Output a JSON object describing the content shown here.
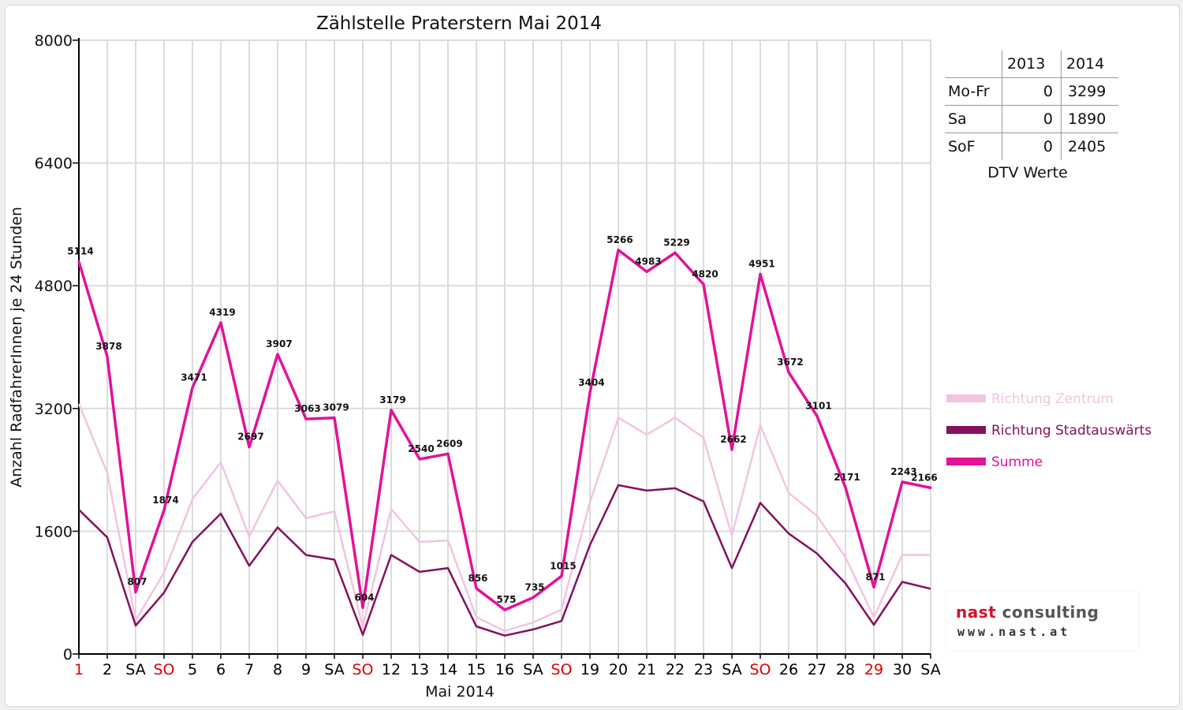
{
  "chart_data": {
    "type": "line",
    "title": "Zählstelle Praterstern Mai 2014",
    "xlabel": "Mai 2014",
    "ylabel": "Anzahl RadfahrerInnen je 24 Stunden",
    "ylim": [
      0,
      8000
    ],
    "yticks": [
      0,
      1600,
      3200,
      4800,
      6400,
      8000
    ],
    "grid": true,
    "legend_position": "right",
    "categories": [
      "1",
      "2",
      "SA",
      "SO",
      "5",
      "6",
      "7",
      "8",
      "9",
      "SA",
      "SO",
      "12",
      "13",
      "14",
      "15",
      "16",
      "SA",
      "SO",
      "19",
      "20",
      "21",
      "22",
      "23",
      "SA",
      "SO",
      "26",
      "27",
      "28",
      "29",
      "30",
      "SA"
    ],
    "category_colors": [
      "#e00000",
      "#000000",
      "#000000",
      "#e00000",
      "#000000",
      "#000000",
      "#000000",
      "#000000",
      "#000000",
      "#000000",
      "#e00000",
      "#000000",
      "#000000",
      "#000000",
      "#000000",
      "#000000",
      "#000000",
      "#e00000",
      "#000000",
      "#000000",
      "#000000",
      "#000000",
      "#000000",
      "#000000",
      "#e00000",
      "#000000",
      "#000000",
      "#000000",
      "#e00000",
      "#000000",
      "#000000"
    ],
    "series": [
      {
        "name": "Richtung Zentrum",
        "color": "#f2c4e2",
        "values": [
          3260,
          2360,
          440,
          1060,
          2020,
          2500,
          1530,
          2260,
          1770,
          1860,
          350,
          1890,
          1460,
          1480,
          480,
          300,
          410,
          580,
          1980,
          3080,
          2860,
          3080,
          2820,
          1540,
          2980,
          2100,
          1800,
          1260,
          480,
          1290,
          1290
        ]
      },
      {
        "name": "Richtung Stadtauswärts",
        "color": "#85105e",
        "values": [
          1880,
          1520,
          370,
          800,
          1460,
          1830,
          1150,
          1650,
          1290,
          1230,
          250,
          1290,
          1070,
          1120,
          360,
          240,
          320,
          430,
          1420,
          2200,
          2130,
          2160,
          1990,
          1120,
          1970,
          1570,
          1310,
          920,
          380,
          940,
          850
        ]
      },
      {
        "name": "Summe",
        "color": "#e2129a",
        "values": [
          5114,
          3878,
          807,
          1874,
          3471,
          4319,
          2697,
          3907,
          3063,
          3079,
          604,
          3179,
          2540,
          2609,
          856,
          575,
          735,
          1015,
          3404,
          5266,
          4983,
          5229,
          4820,
          2662,
          4951,
          3672,
          3101,
          2171,
          871,
          2243,
          2166
        ]
      }
    ],
    "data_labels": [
      5114,
      3878,
      807,
      1874,
      3471,
      4319,
      2697,
      3907,
      3063,
      3079,
      604,
      3179,
      2540,
      2609,
      856,
      575,
      735,
      1015,
      3404,
      5266,
      4983,
      5229,
      4820,
      2662,
      4951,
      3672,
      3101,
      2171,
      871,
      2243,
      2166
    ]
  },
  "dtv_table": {
    "header": [
      "",
      "2013",
      "2014"
    ],
    "rows": [
      {
        "label": "Mo-Fr",
        "v2013": "0",
        "v2014": "3299"
      },
      {
        "label": "Sa",
        "v2013": "0",
        "v2014": "1890"
      },
      {
        "label": "SoF",
        "v2013": "0",
        "v2014": "2405"
      }
    ],
    "caption": "DTV Werte"
  },
  "logo": {
    "name_part1": "nast",
    "name_part2": " consulting",
    "url": "www.nast.at"
  }
}
